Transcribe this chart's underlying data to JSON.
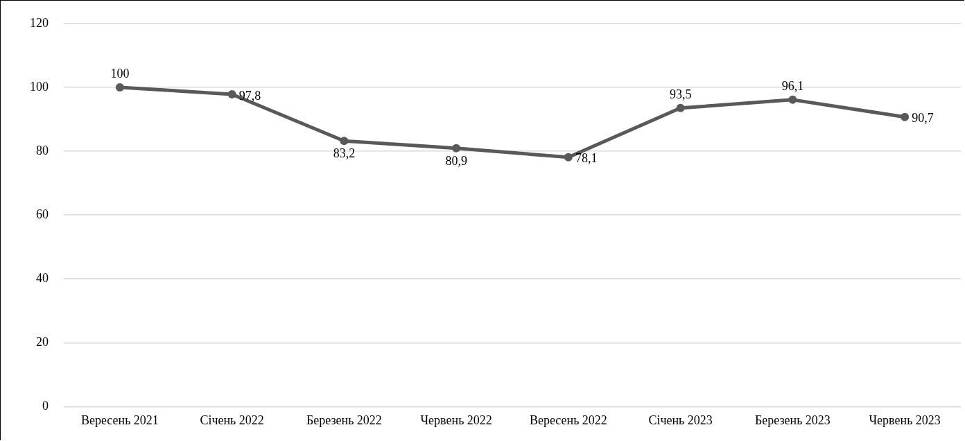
{
  "chart_data": {
    "type": "line",
    "categories": [
      "Вересень 2021",
      "Січень 2022",
      "Березень 2022",
      "Червень 2022",
      "Вересень 2022",
      "Січень 2023",
      "Березень 2023",
      "Червень 2023"
    ],
    "values": [
      100,
      97.8,
      83.2,
      80.9,
      78.1,
      93.5,
      96.1,
      90.7
    ],
    "value_labels": [
      "100",
      "97,8",
      "83,2",
      "80,9",
      "78,1",
      "93,5",
      "96,1",
      "90,7"
    ],
    "color": "#595959",
    "ylim": [
      0,
      120
    ],
    "yticks": [
      0,
      20,
      40,
      60,
      80,
      100,
      120
    ],
    "grid": "y",
    "legend": false,
    "marker": "circle",
    "line_style": "solid"
  }
}
